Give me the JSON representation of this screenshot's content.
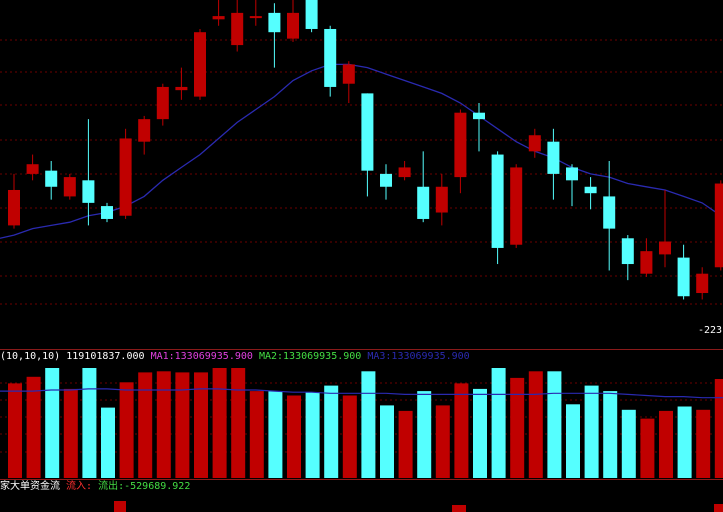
{
  "colors": {
    "up": "#c00000",
    "down": "#55ffff",
    "ma": "#2a2ab0",
    "grid": "#6b0000",
    "divider": "#8a1a1a",
    "vol_label": "#ffffff",
    "ma1_label": "#e040e0",
    "ma2_label": "#44dd44",
    "ma3_label": "#2a2ab0",
    "flow_in": "#ff3030",
    "flow_out": "#44dd44"
  },
  "volume_header": {
    "prefix": "(10,10,10)",
    "value": "119101837.000",
    "ma1": "MA1:133069935.900",
    "ma2": "MA2:133069935.900",
    "ma3": "MA3:133069935.900"
  },
  "flow_header": {
    "title": "家大单资金流",
    "inflow": "流入:",
    "outflow": "流出:-529689.922"
  },
  "price_tag": "-223",
  "chart_data": [
    {
      "type": "candlestick",
      "title": "",
      "note": "price panel; y axis unlabeled, values in relative units (0 = panel bottom, 100 = panel top)",
      "ylim": [
        0,
        100
      ],
      "candles": [
        {
          "o": 30,
          "c": 41,
          "h": 46,
          "l": 29,
          "up": true
        },
        {
          "o": 46,
          "c": 49,
          "h": 52,
          "l": 44,
          "up": true
        },
        {
          "o": 47,
          "c": 42,
          "h": 50,
          "l": 38,
          "up": false
        },
        {
          "o": 39,
          "c": 45,
          "h": 46,
          "l": 38,
          "up": true
        },
        {
          "o": 44,
          "c": 37,
          "h": 63,
          "l": 30,
          "up": false
        },
        {
          "o": 36,
          "c": 32,
          "h": 37,
          "l": 31,
          "up": false
        },
        {
          "o": 33,
          "c": 57,
          "h": 60,
          "l": 32,
          "up": true
        },
        {
          "o": 56,
          "c": 63,
          "h": 64,
          "l": 52,
          "up": true
        },
        {
          "o": 63,
          "c": 73,
          "h": 74,
          "l": 61,
          "up": true
        },
        {
          "o": 72,
          "c": 73,
          "h": 79,
          "l": 69,
          "up": true
        },
        {
          "o": 70,
          "c": 90,
          "h": 91,
          "l": 69,
          "up": true
        },
        {
          "o": 94,
          "c": 95,
          "h": 100,
          "l": 92,
          "up": true
        },
        {
          "o": 86,
          "c": 96,
          "h": 100,
          "l": 84,
          "up": true
        },
        {
          "o": 95,
          "c": 95,
          "h": 100,
          "l": 92,
          "up": true
        },
        {
          "o": 96,
          "c": 90,
          "h": 99,
          "l": 79,
          "up": false
        },
        {
          "o": 88,
          "c": 96,
          "h": 100,
          "l": 87,
          "up": true
        },
        {
          "o": 100,
          "c": 91,
          "h": 100,
          "l": 90,
          "up": false
        },
        {
          "o": 91,
          "c": 73,
          "h": 92,
          "l": 70,
          "up": false
        },
        {
          "o": 74,
          "c": 80,
          "h": 81,
          "l": 68,
          "up": true
        },
        {
          "o": 71,
          "c": 47,
          "h": 71,
          "l": 39,
          "up": false
        },
        {
          "o": 46,
          "c": 42,
          "h": 49,
          "l": 38,
          "up": false
        },
        {
          "o": 45,
          "c": 48,
          "h": 50,
          "l": 44,
          "up": true
        },
        {
          "o": 42,
          "c": 32,
          "h": 53,
          "l": 31,
          "up": false
        },
        {
          "o": 34,
          "c": 42,
          "h": 46,
          "l": 30,
          "up": true
        },
        {
          "o": 45,
          "c": 65,
          "h": 66,
          "l": 40,
          "up": true
        },
        {
          "o": 65,
          "c": 63,
          "h": 68,
          "l": 53,
          "up": false
        },
        {
          "o": 52,
          "c": 23,
          "h": 53,
          "l": 18,
          "up": false
        },
        {
          "o": 24,
          "c": 48,
          "h": 49,
          "l": 23,
          "up": true
        },
        {
          "o": 53,
          "c": 58,
          "h": 60,
          "l": 51,
          "up": true
        },
        {
          "o": 56,
          "c": 46,
          "h": 60,
          "l": 38,
          "up": false
        },
        {
          "o": 48,
          "c": 44,
          "h": 49,
          "l": 36,
          "up": false
        },
        {
          "o": 42,
          "c": 40,
          "h": 45,
          "l": 35,
          "up": false
        },
        {
          "o": 39,
          "c": 29,
          "h": 50,
          "l": 16,
          "up": false
        },
        {
          "o": 26,
          "c": 18,
          "h": 27,
          "l": 13,
          "up": false
        },
        {
          "o": 15,
          "c": 22,
          "h": 26,
          "l": 14,
          "up": true
        },
        {
          "o": 25,
          "c": 21,
          "h": 41,
          "l": 17,
          "up": true
        },
        {
          "o": 20,
          "c": 8,
          "h": 24,
          "l": 7,
          "up": false
        },
        {
          "o": 9,
          "c": 15,
          "h": 17,
          "l": 7,
          "up": true
        },
        {
          "o": 17,
          "c": 43,
          "h": 44,
          "l": 16,
          "up": true
        }
      ],
      "ma": [
        27,
        29,
        30,
        31,
        33,
        34,
        36,
        39,
        44,
        48,
        52,
        57,
        62,
        66,
        70,
        75,
        78,
        80,
        80,
        79,
        77,
        75,
        73,
        71,
        68,
        64,
        60,
        56,
        53,
        51,
        48,
        46,
        45,
        43,
        42,
        41,
        39,
        37,
        33
      ]
    },
    {
      "type": "bar",
      "title": "",
      "note": "volume panel; relative bar heights 0-100",
      "ylim": [
        0,
        100
      ],
      "values": [
        86,
        92,
        100,
        81,
        100,
        64,
        87,
        96,
        97,
        96,
        96,
        100,
        100,
        79,
        79,
        75,
        78,
        84,
        75,
        97,
        66,
        61,
        79,
        66,
        86,
        81,
        100,
        91,
        97,
        97,
        67,
        84,
        79,
        62,
        54,
        61,
        65,
        62,
        90
      ],
      "ma": [
        79,
        79,
        80,
        80,
        81,
        81,
        80,
        80,
        80,
        80,
        81,
        81,
        80,
        80,
        79,
        78,
        78,
        77,
        77,
        77,
        77,
        76,
        76,
        76,
        76,
        76,
        76,
        76,
        76,
        77,
        77,
        77,
        77,
        76,
        75,
        74,
        74,
        73,
        73
      ]
    }
  ]
}
